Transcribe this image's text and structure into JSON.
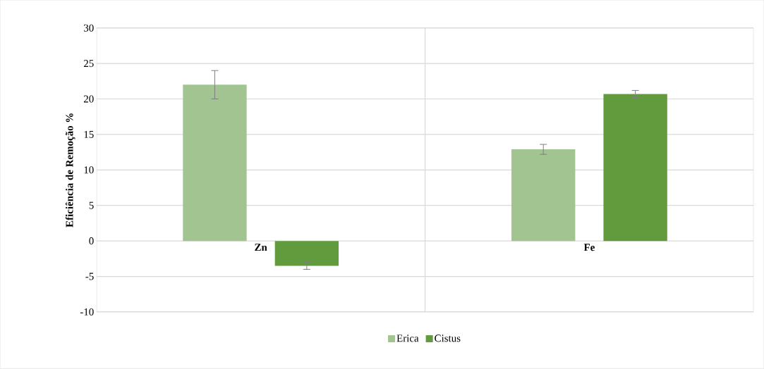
{
  "chart_data": {
    "type": "bar",
    "ylabel": "Eficiência de Remoção %",
    "categories": [
      "Zn",
      "Fe"
    ],
    "series": [
      {
        "name": "Erica",
        "color": "#a1c490",
        "values": [
          22.0,
          12.9
        ],
        "errors": [
          2.0,
          0.7
        ]
      },
      {
        "name": "Cistus",
        "color": "#629b3e",
        "values": [
          -3.5,
          20.7
        ],
        "errors": [
          0.5,
          0.5
        ]
      }
    ],
    "ylim": [
      -10,
      30
    ],
    "yticks": [
      -10,
      -5,
      0,
      5,
      10,
      15,
      20,
      25,
      30
    ],
    "grid": true,
    "legend": "bottom"
  }
}
